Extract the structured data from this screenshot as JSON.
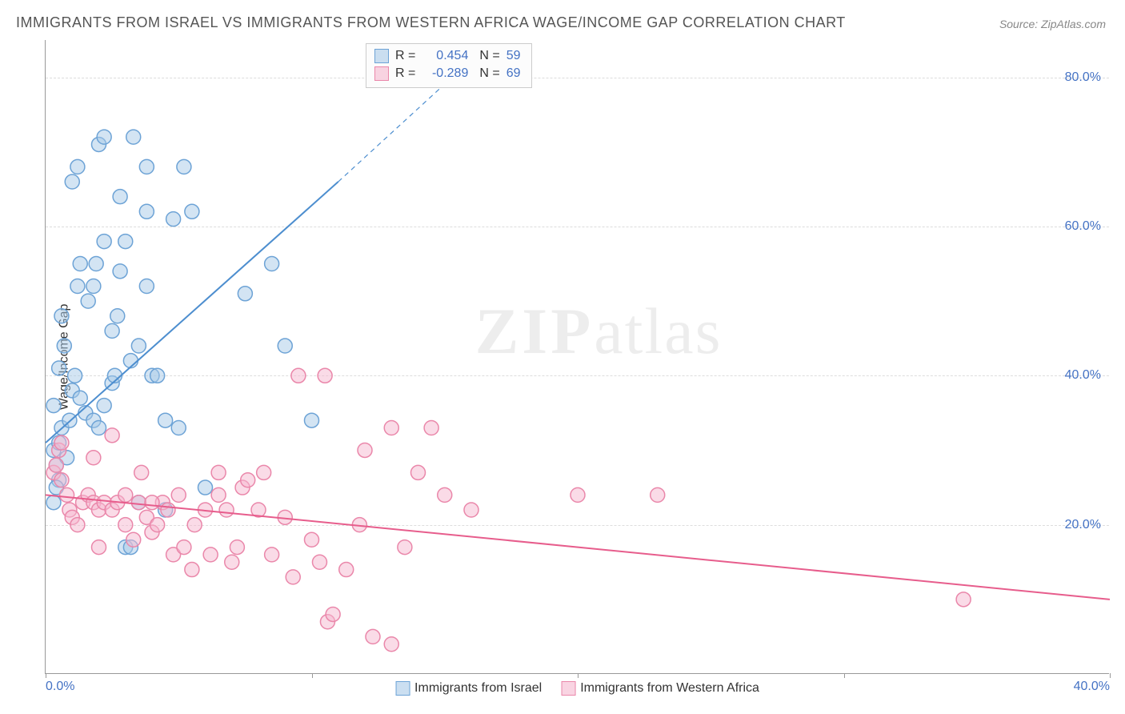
{
  "title": "IMMIGRANTS FROM ISRAEL VS IMMIGRANTS FROM WESTERN AFRICA WAGE/INCOME GAP CORRELATION CHART",
  "source": "Source: ZipAtlas.com",
  "ylabel": "Wage/Income Gap",
  "watermark_a": "ZIP",
  "watermark_b": "atlas",
  "chart": {
    "type": "scatter",
    "xlim": [
      0,
      40
    ],
    "ylim": [
      0,
      85
    ],
    "x_tick_unit": "%",
    "y_tick_unit": "%",
    "x_ticks": [
      0,
      10,
      20,
      30,
      40
    ],
    "y_ticks": [
      20,
      40,
      60,
      80
    ],
    "x_tick_labels": [
      "0.0%",
      "",
      "",
      "",
      "40.0%"
    ],
    "y_tick_labels": [
      "20.0%",
      "40.0%",
      "60.0%",
      "80.0%"
    ],
    "grid_color": "#dddddd",
    "background_color": "#ffffff",
    "marker_radius": 9,
    "marker_stroke_width": 1.5,
    "marker_fill_opacity": 0.25,
    "line_width": 2,
    "label_fontsize": 16,
    "title_fontsize": 18,
    "series": [
      {
        "id": "israel",
        "label": "Immigrants from Israel",
        "color": "#4d8ecf",
        "fill": "#a8c9e8",
        "stroke": "#6da3d6",
        "R": "0.454",
        "N": "59",
        "trend": {
          "x1": 0,
          "y1": 31,
          "x2": 11,
          "y2": 66,
          "x2_ext": 16.5,
          "y2_ext": 84
        },
        "points": [
          [
            0.3,
            30
          ],
          [
            0.5,
            31
          ],
          [
            0.6,
            33
          ],
          [
            0.4,
            28
          ],
          [
            0.8,
            29
          ],
          [
            0.9,
            34
          ],
          [
            1.0,
            38
          ],
          [
            1.1,
            40
          ],
          [
            1.3,
            37
          ],
          [
            0.5,
            41
          ],
          [
            0.7,
            44
          ],
          [
            0.6,
            48
          ],
          [
            1.5,
            35
          ],
          [
            1.8,
            34
          ],
          [
            2.0,
            33
          ],
          [
            2.2,
            36
          ],
          [
            2.5,
            39
          ],
          [
            2.6,
            40
          ],
          [
            1.2,
            52
          ],
          [
            1.3,
            55
          ],
          [
            1.9,
            55
          ],
          [
            2.8,
            54
          ],
          [
            3.0,
            58
          ],
          [
            2.5,
            46
          ],
          [
            3.2,
            42
          ],
          [
            3.5,
            44
          ],
          [
            2.7,
            48
          ],
          [
            4.0,
            40
          ],
          [
            4.2,
            40
          ],
          [
            4.5,
            34
          ],
          [
            5.0,
            33
          ],
          [
            3.8,
            62
          ],
          [
            2.8,
            64
          ],
          [
            1.0,
            66
          ],
          [
            1.2,
            68
          ],
          [
            2.0,
            71
          ],
          [
            2.2,
            72
          ],
          [
            3.3,
            72
          ],
          [
            3.8,
            68
          ],
          [
            5.2,
            68
          ],
          [
            5.5,
            62
          ],
          [
            7.5,
            51
          ],
          [
            8.5,
            55
          ],
          [
            9.0,
            44
          ],
          [
            10.0,
            34
          ],
          [
            6.0,
            25
          ],
          [
            4.5,
            22
          ],
          [
            3.5,
            23
          ],
          [
            3.0,
            17
          ],
          [
            3.2,
            17
          ],
          [
            0.5,
            26
          ],
          [
            0.4,
            25
          ],
          [
            0.3,
            23
          ],
          [
            0.3,
            36
          ],
          [
            1.6,
            50
          ],
          [
            1.8,
            52
          ],
          [
            2.2,
            58
          ],
          [
            3.8,
            52
          ],
          [
            4.8,
            61
          ]
        ]
      },
      {
        "id": "western_africa",
        "label": "Immigrants from Western Africa",
        "color": "#e75d8c",
        "fill": "#f5b8cf",
        "stroke": "#ea87aa",
        "R": "-0.289",
        "N": "69",
        "trend": {
          "x1": 0,
          "y1": 24,
          "x2": 40,
          "y2": 10
        },
        "points": [
          [
            0.3,
            27
          ],
          [
            0.4,
            28
          ],
          [
            0.5,
            30
          ],
          [
            0.6,
            31
          ],
          [
            0.6,
            26
          ],
          [
            0.8,
            24
          ],
          [
            0.9,
            22
          ],
          [
            1.0,
            21
          ],
          [
            1.4,
            23
          ],
          [
            1.6,
            24
          ],
          [
            1.8,
            23
          ],
          [
            1.8,
            29
          ],
          [
            2.0,
            22
          ],
          [
            2.2,
            23
          ],
          [
            2.5,
            22
          ],
          [
            2.7,
            23
          ],
          [
            3.0,
            24
          ],
          [
            3.0,
            20
          ],
          [
            3.3,
            18
          ],
          [
            3.5,
            23
          ],
          [
            3.6,
            27
          ],
          [
            3.8,
            21
          ],
          [
            2.5,
            32
          ],
          [
            4.0,
            19
          ],
          [
            4.2,
            20
          ],
          [
            4.4,
            23
          ],
          [
            4.6,
            22
          ],
          [
            4.8,
            16
          ],
          [
            5.0,
            24
          ],
          [
            5.2,
            17
          ],
          [
            5.5,
            14
          ],
          [
            5.6,
            20
          ],
          [
            6.0,
            22
          ],
          [
            6.2,
            16
          ],
          [
            6.5,
            24
          ],
          [
            6.8,
            22
          ],
          [
            7.0,
            15
          ],
          [
            7.2,
            17
          ],
          [
            7.4,
            25
          ],
          [
            7.6,
            26
          ],
          [
            8.0,
            22
          ],
          [
            8.2,
            27
          ],
          [
            8.5,
            16
          ],
          [
            9.0,
            21
          ],
          [
            9.3,
            13
          ],
          [
            9.5,
            40
          ],
          [
            10.0,
            18
          ],
          [
            10.3,
            15
          ],
          [
            10.6,
            7
          ],
          [
            10.8,
            8
          ],
          [
            11.3,
            14
          ],
          [
            11.8,
            20
          ],
          [
            12.0,
            30
          ],
          [
            12.3,
            5
          ],
          [
            13.0,
            33
          ],
          [
            13.5,
            17
          ],
          [
            14.0,
            27
          ],
          [
            14.5,
            33
          ],
          [
            15.0,
            24
          ],
          [
            16.0,
            22
          ],
          [
            10.5,
            40
          ],
          [
            13.0,
            4
          ],
          [
            20.0,
            24
          ],
          [
            23.0,
            24
          ],
          [
            34.5,
            10
          ],
          [
            1.2,
            20
          ],
          [
            2.0,
            17
          ],
          [
            4.0,
            23
          ],
          [
            6.5,
            27
          ]
        ]
      }
    ]
  },
  "stats_labels": {
    "R": "R",
    "N": "N",
    "eq": "="
  }
}
